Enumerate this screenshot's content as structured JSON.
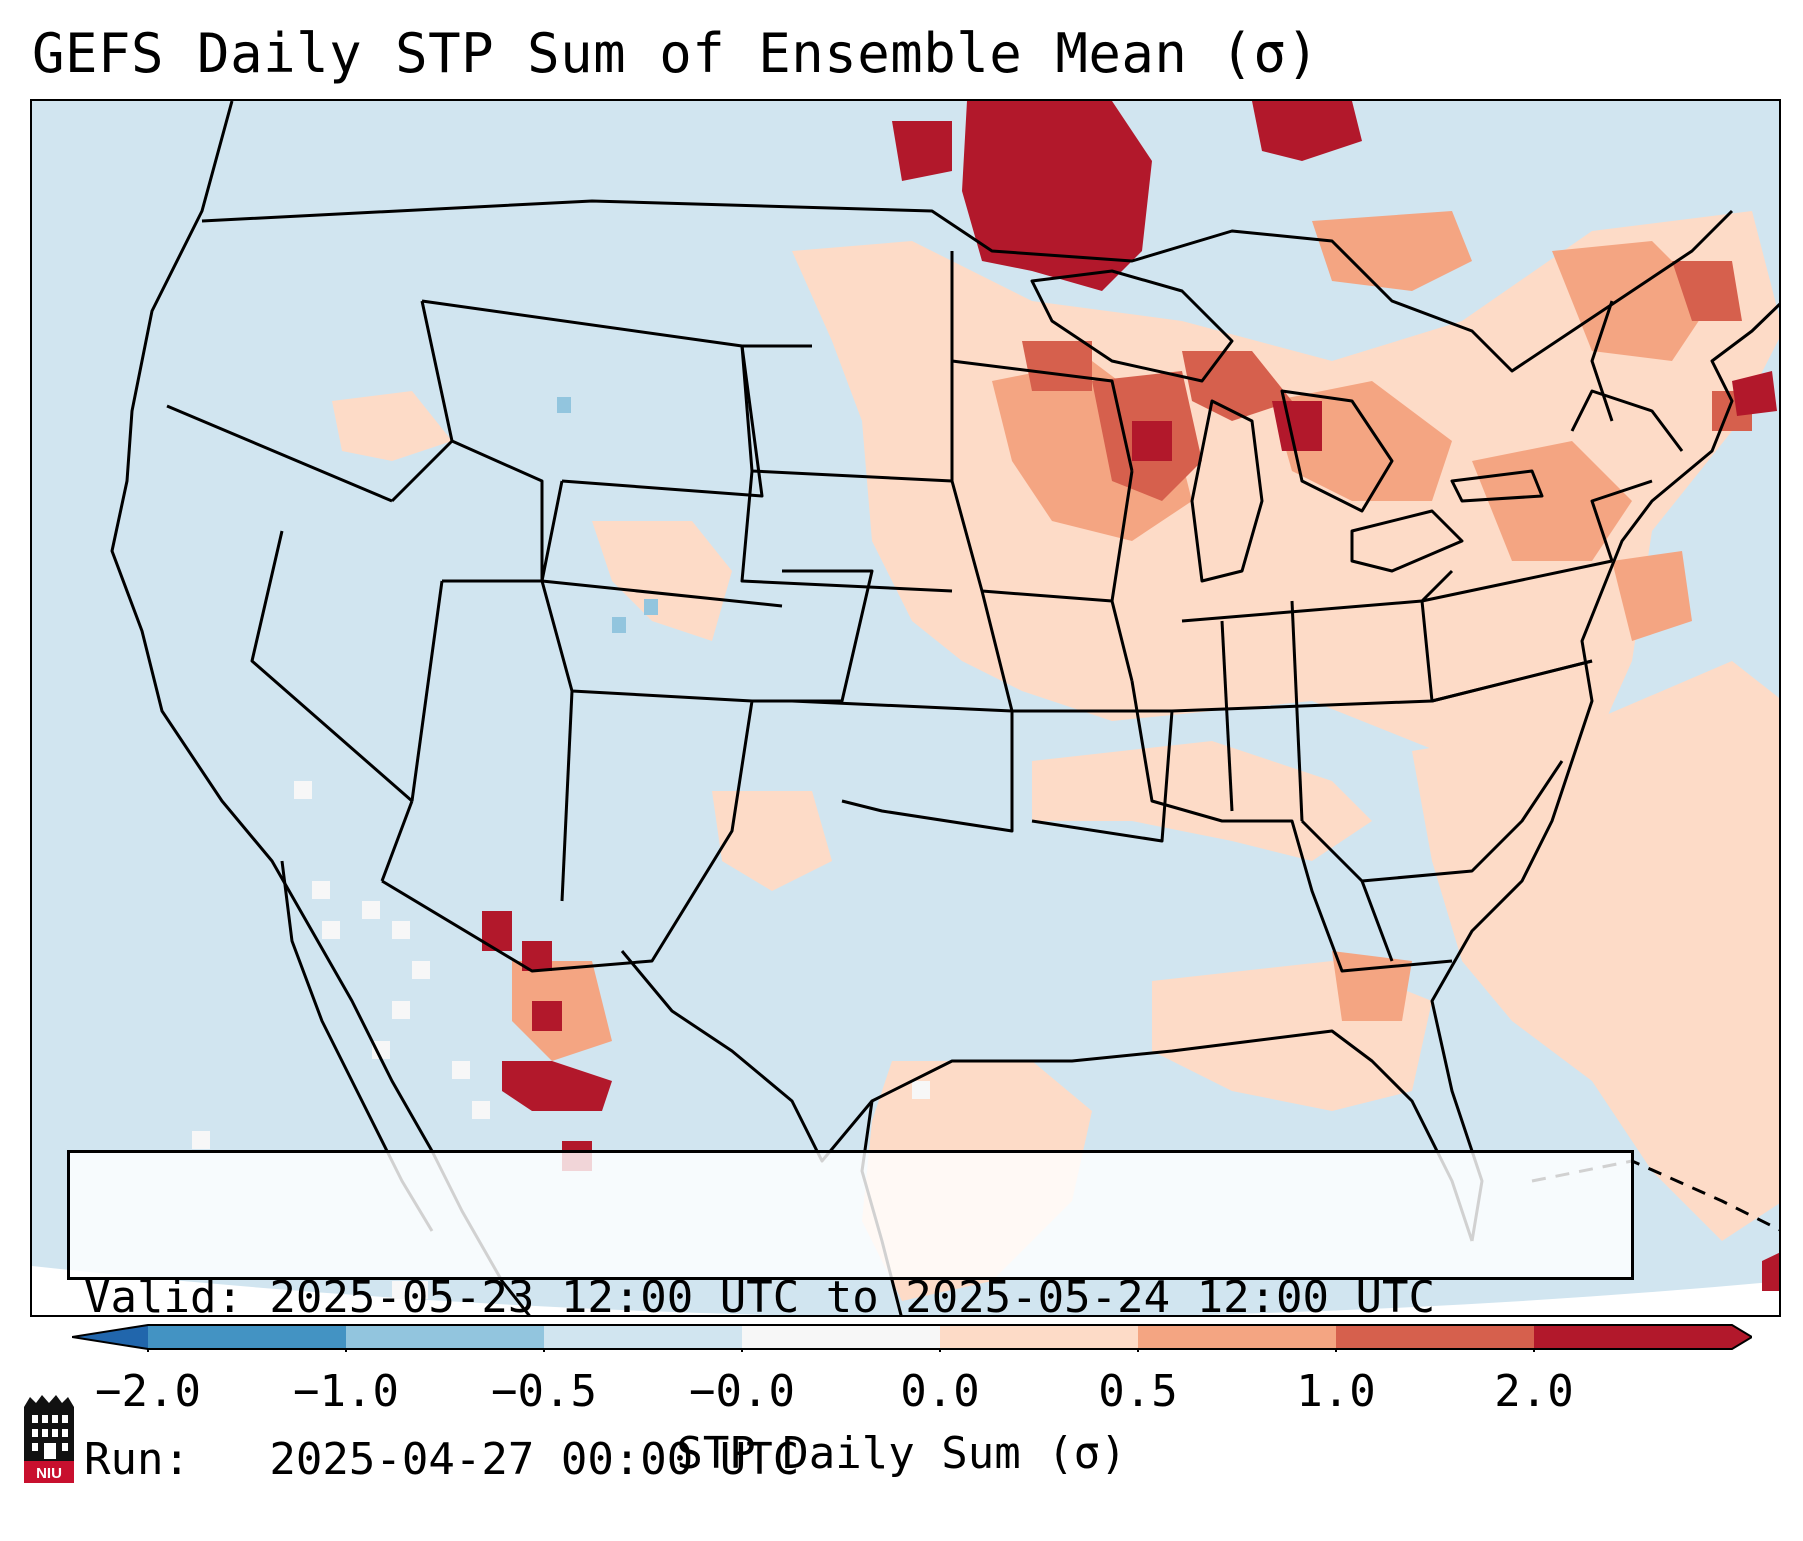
{
  "title": "GEFS Daily STP Sum of Ensemble Mean (σ)",
  "info": {
    "valid_line": "Valid: 2025-05-23 12:00 UTC to 2025-05-24 12:00 UTC",
    "run_line": "Run:   2025-04-27 00:00 UTC"
  },
  "colorbar": {
    "label": "STP Daily Sum (σ)",
    "ticks": [
      "−2.0",
      "−1.0",
      "−0.5",
      "−0.0",
      "0.0",
      "0.5",
      "1.0",
      "2.0"
    ],
    "colors": [
      "#4393c3",
      "#92c5de",
      "#d1e5f0",
      "#f7f7f7",
      "#fddbc7",
      "#f4a582",
      "#d6604d",
      "#b2182b"
    ],
    "under_color": "#2166ac",
    "over_color": "#b2182b"
  },
  "map": {
    "ocean_color": "#d1e5f0",
    "projection": "Lambert Conformal CONUS",
    "regions": [
      {
        "name": "Upper Midwest / Minnesota",
        "level": "over 2.0"
      },
      {
        "name": "Wisconsin / Michigan",
        "level": "1.0 to 2.0"
      },
      {
        "name": "Great Lakes / Ohio Valley",
        "level": "0.0 to 0.5"
      },
      {
        "name": "Northeast / New England",
        "level": "0.5 to 2.0"
      },
      {
        "name": "Northern Mexico (Chihuahua)",
        "level": "over 2.0"
      },
      {
        "name": "Western Atlantic",
        "level": "0.0 to 0.5"
      },
      {
        "name": "Gulf of Mexico",
        "level": "0.0 to 0.5"
      },
      {
        "name": "Colorado / Utah isolated",
        "level": "-1.0 to -0.5"
      }
    ]
  },
  "logo": {
    "text": "NIU"
  }
}
